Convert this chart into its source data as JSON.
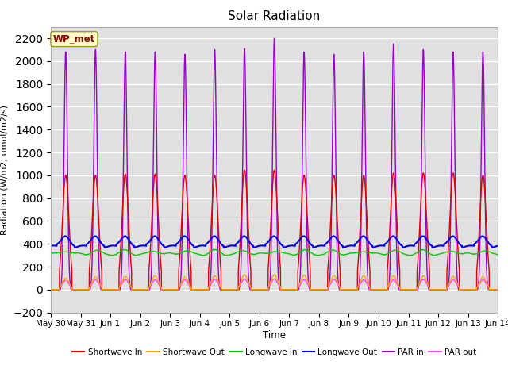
{
  "title": "Solar Radiation",
  "ylabel": "Radiation (W/m2, umol/m2/s)",
  "xlabel": "Time",
  "ylim": [
    -200,
    2300
  ],
  "yticks": [
    -200,
    0,
    200,
    400,
    600,
    800,
    1000,
    1200,
    1400,
    1600,
    1800,
    2000,
    2200
  ],
  "bg_color": "#e0e0e0",
  "station_label": "WP_met",
  "station_label_color": "#8B0000",
  "station_label_bg": "#ffffcc",
  "series": {
    "shortwave_in": {
      "color": "#dd0000",
      "label": "Shortwave In",
      "lw": 1.0
    },
    "shortwave_out": {
      "color": "#ffa500",
      "label": "Shortwave Out",
      "lw": 1.0
    },
    "longwave_in": {
      "color": "#00cc00",
      "label": "Longwave In",
      "lw": 1.0
    },
    "longwave_out": {
      "color": "#0000ee",
      "label": "Longwave Out",
      "lw": 1.5
    },
    "par_in": {
      "color": "#9900cc",
      "label": "PAR in",
      "lw": 1.0
    },
    "par_out": {
      "color": "#ff44ff",
      "label": "PAR out",
      "lw": 1.0
    }
  },
  "n_days": 15,
  "tick_positions": [
    0,
    1,
    2,
    3,
    4,
    5,
    6,
    7,
    8,
    9,
    10,
    11,
    12,
    13,
    14,
    15
  ],
  "tick_labels": [
    "May 30",
    "May 31",
    "Jun 1",
    "Jun 2",
    "Jun 3",
    "Jun 4",
    "Jun 5",
    "Jun 6",
    "Jun 7",
    "Jun 8",
    "Jun 9",
    "Jun 10",
    "Jun 11",
    "Jun 12",
    "Jun 13",
    "Jun 14"
  ]
}
